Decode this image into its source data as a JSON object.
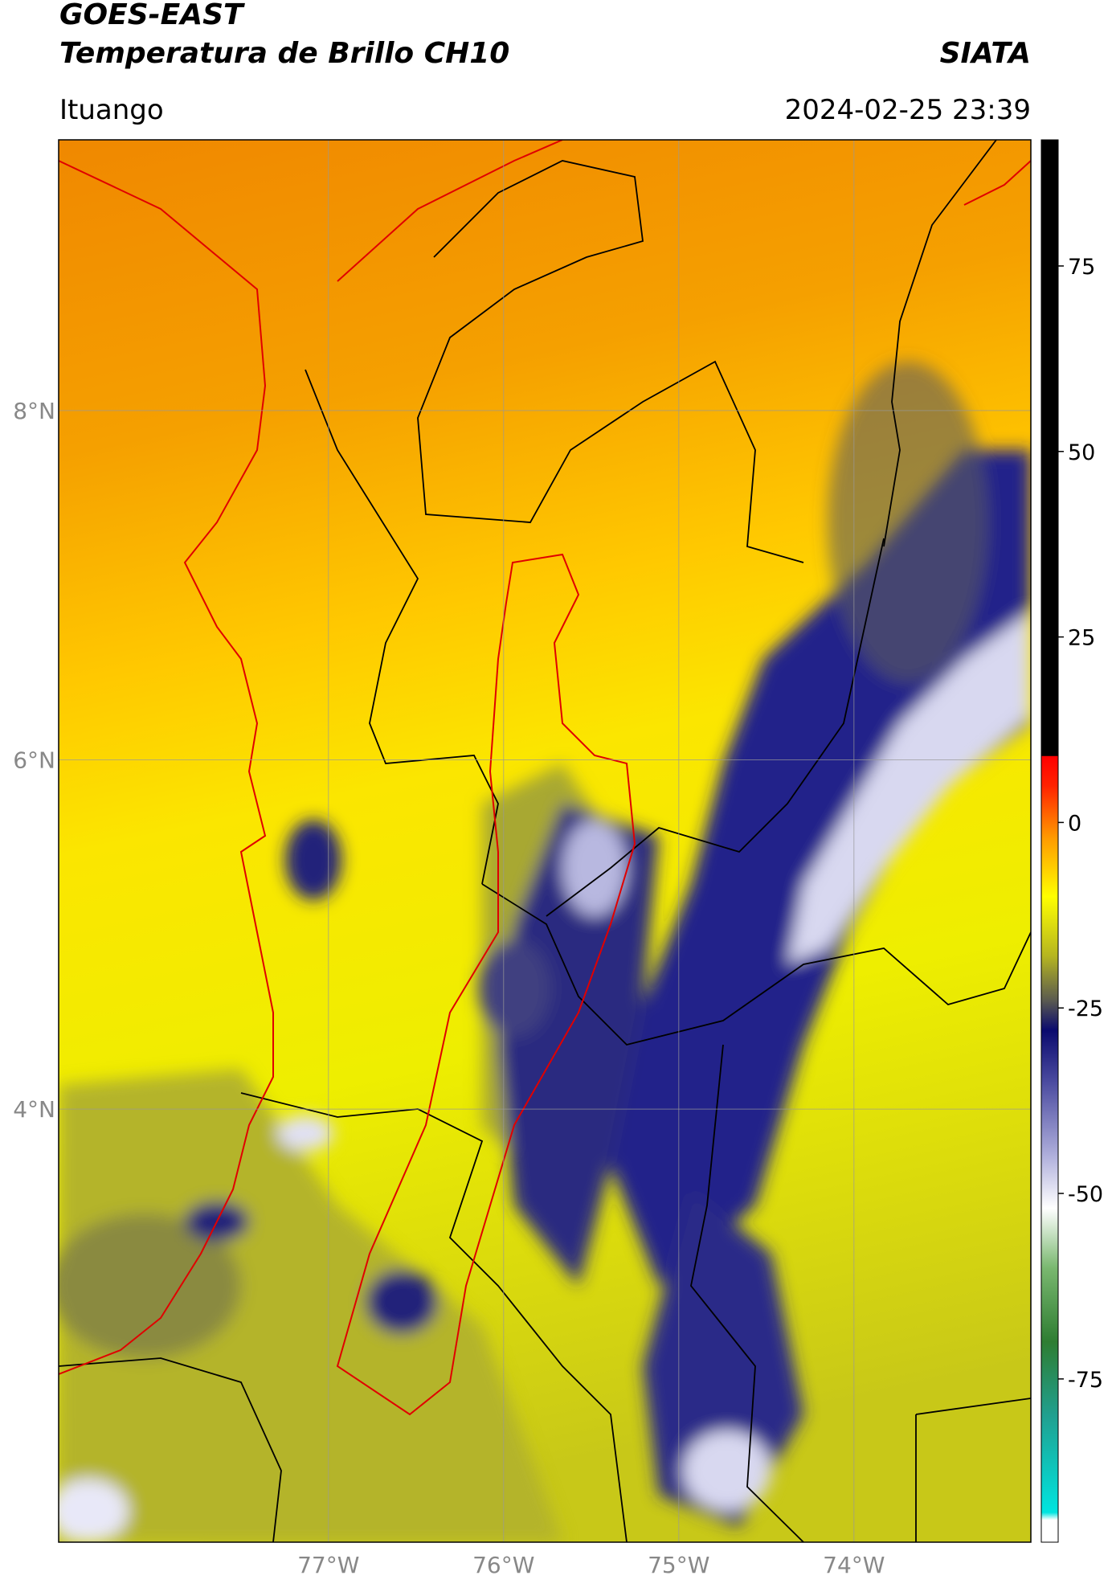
{
  "header": {
    "title": "GOES-EAST",
    "subtitle": "Temperatura de Brillo CH10",
    "brand": "SIATA",
    "location": "Ituango",
    "datetime": "2024-02-25 23:39"
  },
  "map": {
    "lonlim": [
      -78.54,
      -72.99
    ],
    "latlim": [
      1.52,
      9.55
    ],
    "lat_ticks": [
      {
        "value": 8,
        "label": "8°N"
      },
      {
        "value": 6,
        "label": "6°N"
      },
      {
        "value": 4,
        "label": "4°N"
      }
    ],
    "lon_ticks": [
      {
        "value": -77,
        "label": "77°W"
      },
      {
        "value": -76,
        "label": "76°W"
      },
      {
        "value": -75,
        "label": "75°W"
      },
      {
        "value": -74,
        "label": "74°W"
      }
    ]
  },
  "colorbar": {
    "lim": [
      -97,
      92
    ],
    "ticks": [
      75,
      50,
      25,
      0,
      -25,
      -50,
      -75
    ],
    "colormap": [
      {
        "value": -97,
        "color": "#ffffff"
      },
      {
        "value": -94,
        "color": "#ffffff"
      },
      {
        "value": -93,
        "color": "#00e5e0"
      },
      {
        "value": -80,
        "color": "#20a090"
      },
      {
        "value": -70,
        "color": "#2e7d32"
      },
      {
        "value": -60,
        "color": "#7ab870"
      },
      {
        "value": -52,
        "color": "#ffffff"
      },
      {
        "value": -45,
        "color": "#b0b0dc"
      },
      {
        "value": -35,
        "color": "#4b4ba0"
      },
      {
        "value": -28,
        "color": "#0a0a6e"
      },
      {
        "value": -24,
        "color": "#5a5a50"
      },
      {
        "value": -18,
        "color": "#b5b520"
      },
      {
        "value": -10,
        "color": "#ffff00"
      },
      {
        "value": -2,
        "color": "#ff9900"
      },
      {
        "value": 5,
        "color": "#ff2200"
      },
      {
        "value": 8.9,
        "color": "#ff0000"
      },
      {
        "value": 9,
        "color": "#000000"
      },
      {
        "value": 92,
        "color": "#000000"
      }
    ]
  }
}
